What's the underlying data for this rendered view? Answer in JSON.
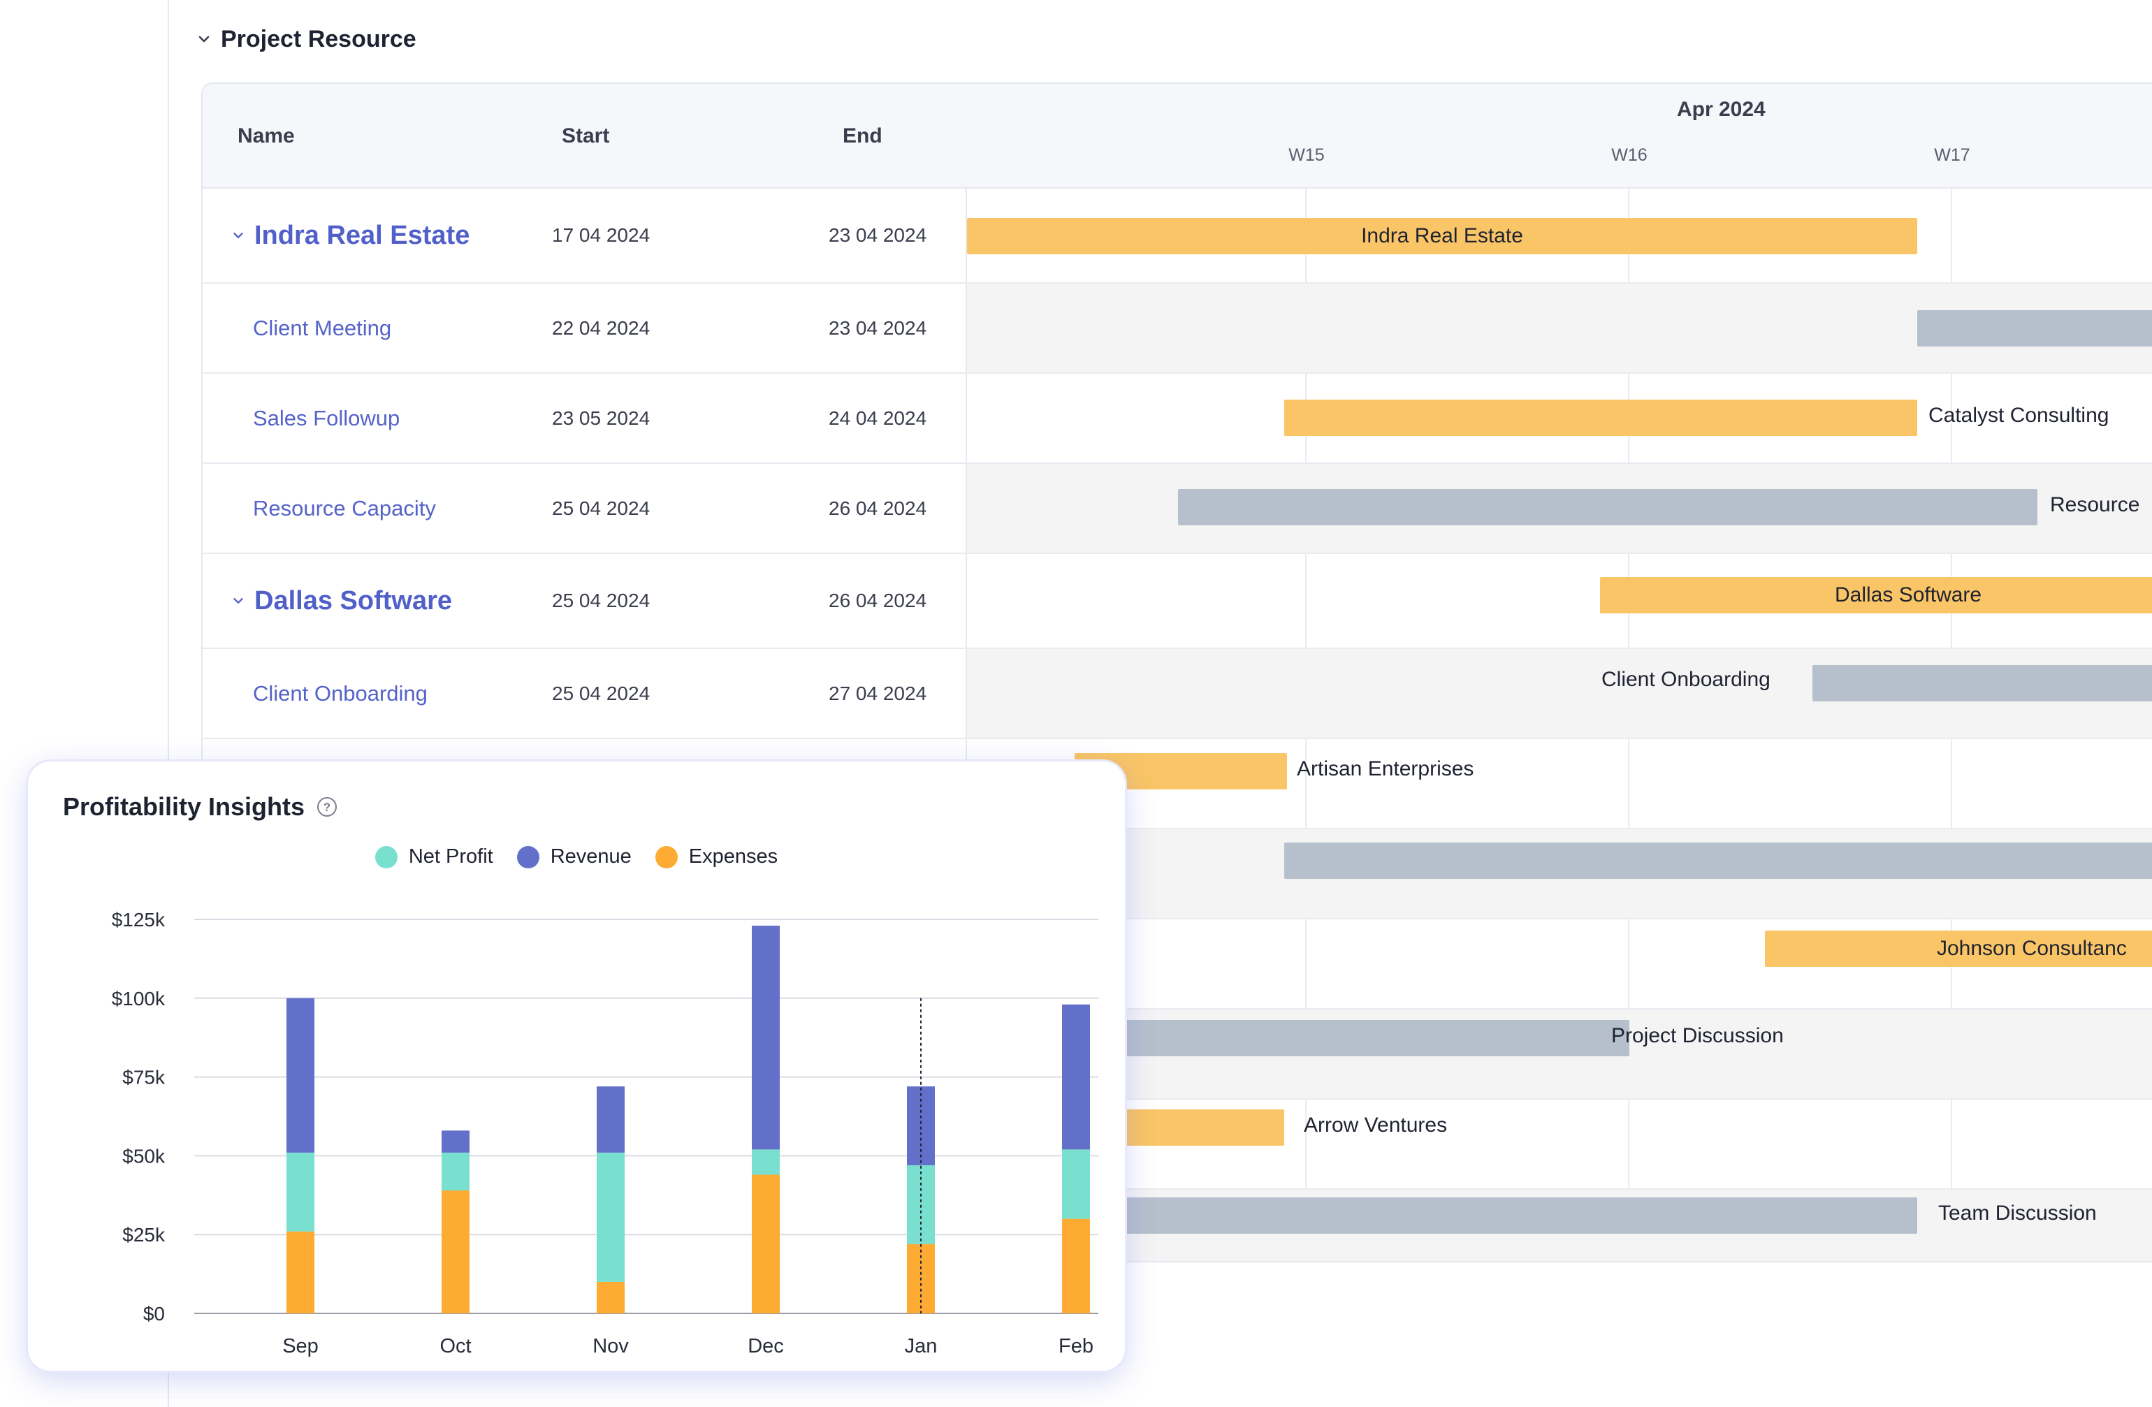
{
  "section": {
    "title": "Project Resource"
  },
  "gantt": {
    "columns": {
      "name": "Name",
      "start": "Start",
      "end": "End"
    },
    "month": "Apr 2024",
    "weeks": [
      "W15",
      "W16",
      "W17"
    ],
    "rows": [
      {
        "name": "Indra Real Estate",
        "start": "17 04 2024",
        "end": "23 04 2024",
        "parent": true
      },
      {
        "name": "Client Meeting",
        "start": "22 04 2024",
        "end": "23 04 2024"
      },
      {
        "name": "Sales Followup",
        "start": "23 05 2024",
        "end": "24 04 2024"
      },
      {
        "name": "Resource Capacity",
        "start": "25 04 2024",
        "end": "26 04 2024"
      },
      {
        "name": "Dallas Software",
        "start": "25 04 2024",
        "end": "26 04 2024",
        "parent": true
      },
      {
        "name": "Client Onboarding",
        "start": "25 04 2024",
        "end": "27 04 2024"
      }
    ],
    "bar_labels": {
      "indra": "Indra Real Estate",
      "catalyst": "Catalyst Consulting",
      "resource": "Resource",
      "dallas": "Dallas Software",
      "client_onboarding": "Client Onboarding",
      "artisan": "Artisan Enterprises",
      "johnson": "Johnson Consultanc",
      "project_discussion": "Project Discussion",
      "arrow": "Arrow Ventures",
      "team_discussion": "Team Discussion"
    },
    "colors": {
      "orange": "#f9c566",
      "gray": "#b6c0cc",
      "accent": "#5563c8"
    }
  },
  "insights": {
    "title": "Profitability Insights",
    "help_icon": "question-circle-icon",
    "legend": [
      {
        "label": "Net Profit",
        "color": "#79e0cf"
      },
      {
        "label": "Revenue",
        "color": "#6270c9"
      },
      {
        "label": "Expenses",
        "color": "#fdab33"
      }
    ]
  },
  "chart_data": {
    "type": "bar",
    "stacked": true,
    "title": "Profitability Insights",
    "categories": [
      "Sep",
      "Oct",
      "Nov",
      "Dec",
      "Jan",
      "Feb"
    ],
    "series": [
      {
        "name": "Expenses",
        "color": "#fdab33",
        "values": [
          26000,
          39000,
          10000,
          44000,
          22000,
          30000
        ]
      },
      {
        "name": "Net Profit",
        "color": "#79e0cf",
        "values": [
          25000,
          12000,
          41000,
          8000,
          25000,
          22000
        ]
      },
      {
        "name": "Revenue",
        "color": "#6270c9",
        "values": [
          49000,
          7000,
          21000,
          71000,
          25000,
          46000
        ]
      }
    ],
    "yticks": [
      "$0",
      "$25k",
      "$50k",
      "$75k",
      "$100k",
      "$125k"
    ],
    "ylim": [
      0,
      125000
    ],
    "legend_position": "top-center",
    "hover_category": "Jan"
  }
}
